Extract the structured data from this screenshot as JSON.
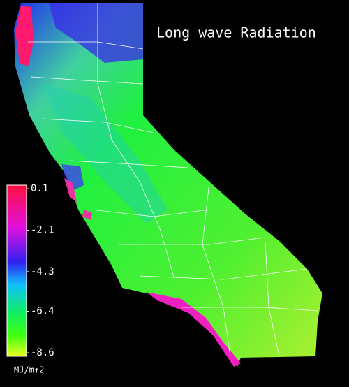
{
  "title": "Long wave Radiation",
  "legend": {
    "ticks": [
      0.1,
      -2.1,
      -4.3,
      -6.4,
      -8.6
    ],
    "unit": "MJ/m↑2"
  }
}
